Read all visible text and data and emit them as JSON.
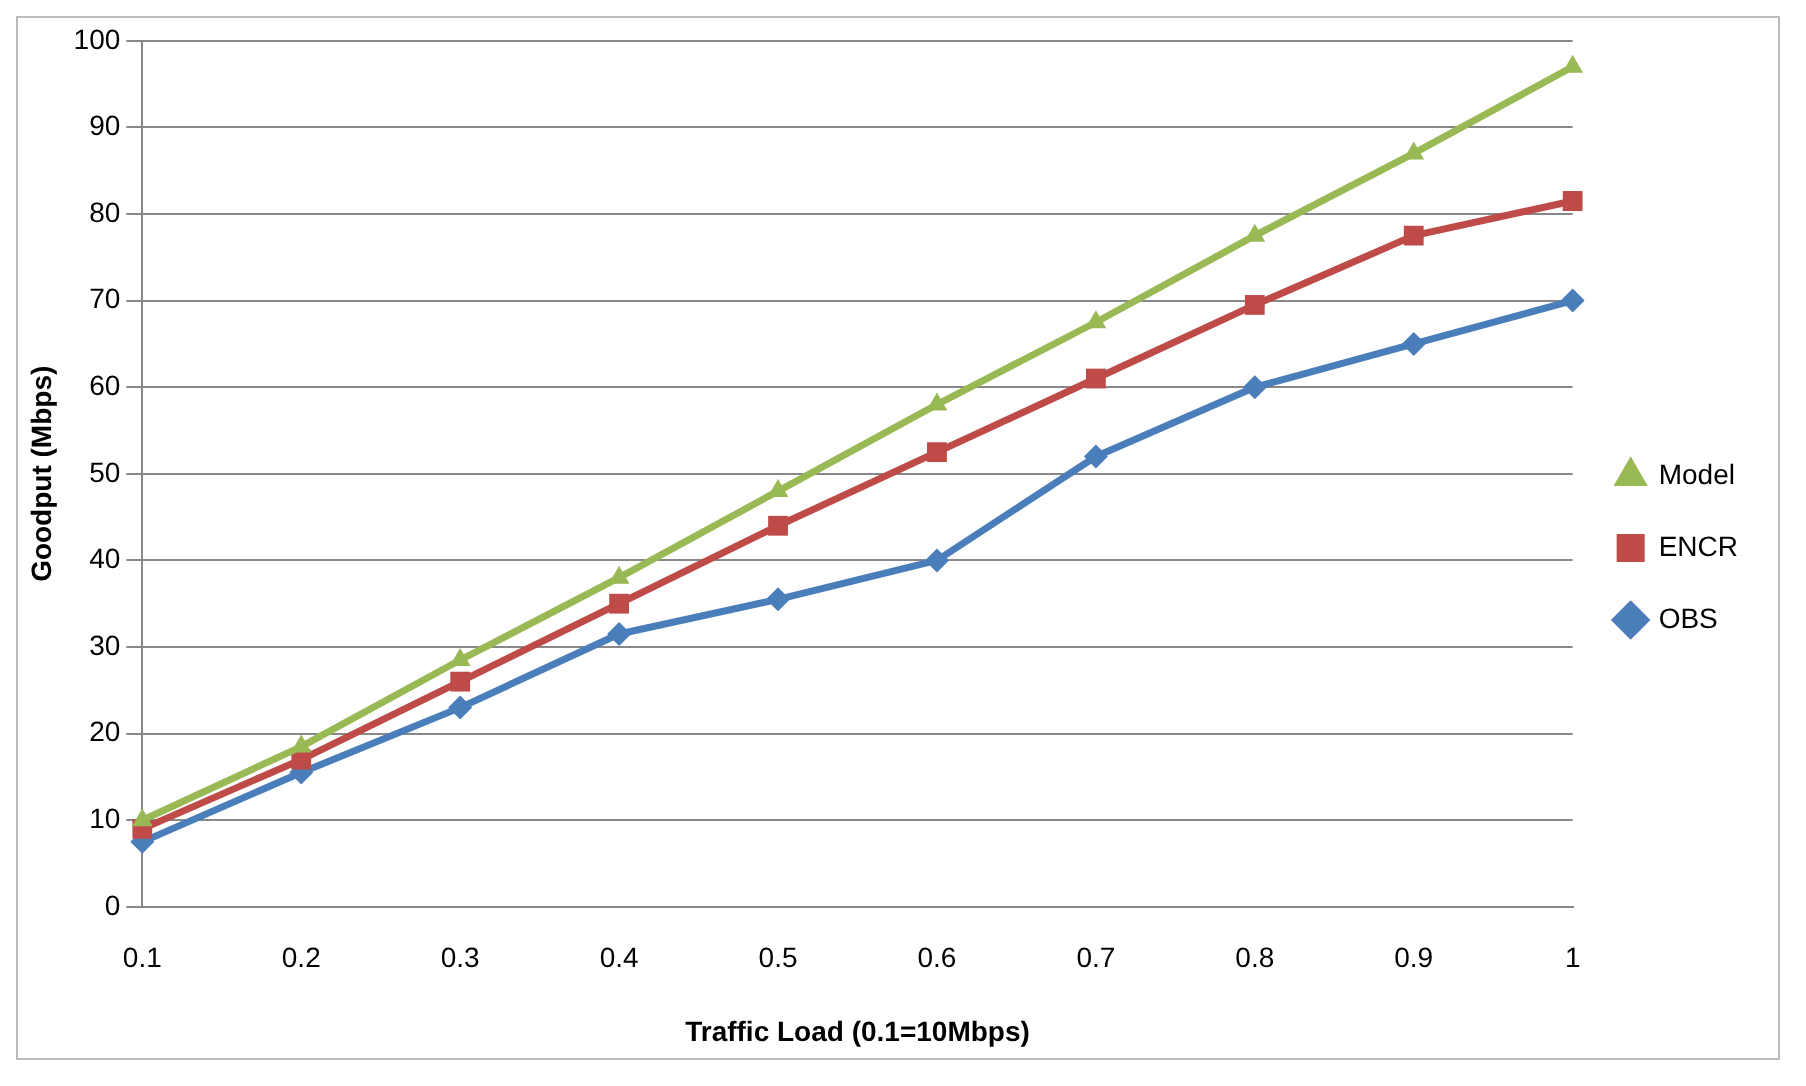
{
  "chart_data": {
    "type": "line",
    "xlabel": "Traffic Load (0.1=10Mbps)",
    "ylabel": "Goodput (Mbps)",
    "categories": [
      "0.1",
      "0.2",
      "0.3",
      "0.4",
      "0.5",
      "0.6",
      "0.7",
      "0.8",
      "0.9",
      "1"
    ],
    "series": [
      {
        "name": "OBS",
        "color": "#4a7ebb",
        "marker": "diamond",
        "values": [
          7.5,
          15.5,
          23,
          31.5,
          35.5,
          40,
          52,
          60,
          65,
          70
        ]
      },
      {
        "name": "ENCR",
        "color": "#be4b48",
        "marker": "square",
        "values": [
          9,
          17,
          26,
          35,
          44,
          52.5,
          61,
          69.5,
          77.5,
          81.5
        ]
      },
      {
        "name": "Model",
        "color": "#98b954",
        "marker": "triangle",
        "values": [
          10,
          18.5,
          28.5,
          38,
          48,
          58,
          67.5,
          77.5,
          87,
          97
        ]
      }
    ],
    "ylim": [
      0,
      100
    ],
    "yticks": [
      0,
      10,
      20,
      30,
      40,
      50,
      60,
      70,
      80,
      90,
      100
    ],
    "grid": "y",
    "legend": "right",
    "line_style": "solid"
  }
}
